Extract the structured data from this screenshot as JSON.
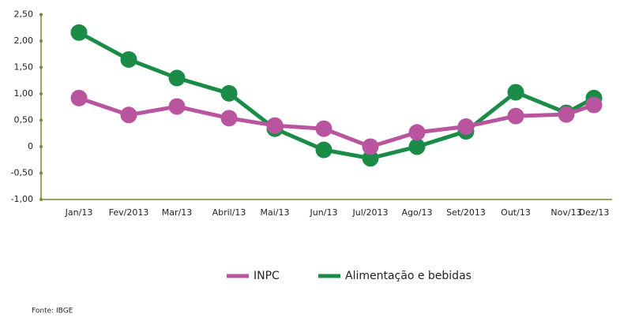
{
  "chart_data": {
    "type": "line",
    "categories": [
      "Jan/13",
      "Fev/2013",
      "Mar/13",
      "Abril/13",
      "Mai/13",
      "Jun/13",
      "Jul/2013",
      "Ago/13",
      "Set/2013",
      "Out/13",
      "Nov/13",
      "Dez/13"
    ],
    "series": [
      {
        "name": "Alimentação e bebidas",
        "color": "#1b8c47",
        "values": [
          2.16,
          1.65,
          1.3,
          1.01,
          0.34,
          -0.06,
          -0.22,
          0.0,
          0.29,
          1.03,
          0.64,
          0.92
        ]
      },
      {
        "name": "INPC",
        "color": "#b9559f",
        "values": [
          0.92,
          0.6,
          0.76,
          0.54,
          0.4,
          0.34,
          0.0,
          0.27,
          0.38,
          0.58,
          0.61,
          0.79
        ]
      }
    ],
    "ylim": [
      -1,
      2.5
    ],
    "yticks": [
      {
        "value": 2.5,
        "label": "2,50"
      },
      {
        "value": 2,
        "label": "2,00"
      },
      {
        "value": 1.5,
        "label": "1,50"
      },
      {
        "value": 1,
        "label": "1,00"
      },
      {
        "value": 0.5,
        "label": "0,50"
      },
      0,
      {
        "value": -0.5,
        "label": "-0,50"
      },
      {
        "value": -1,
        "label": "-1,00"
      }
    ],
    "legend": "bottom",
    "annotations": [
      "Fonte: IBGE"
    ]
  }
}
